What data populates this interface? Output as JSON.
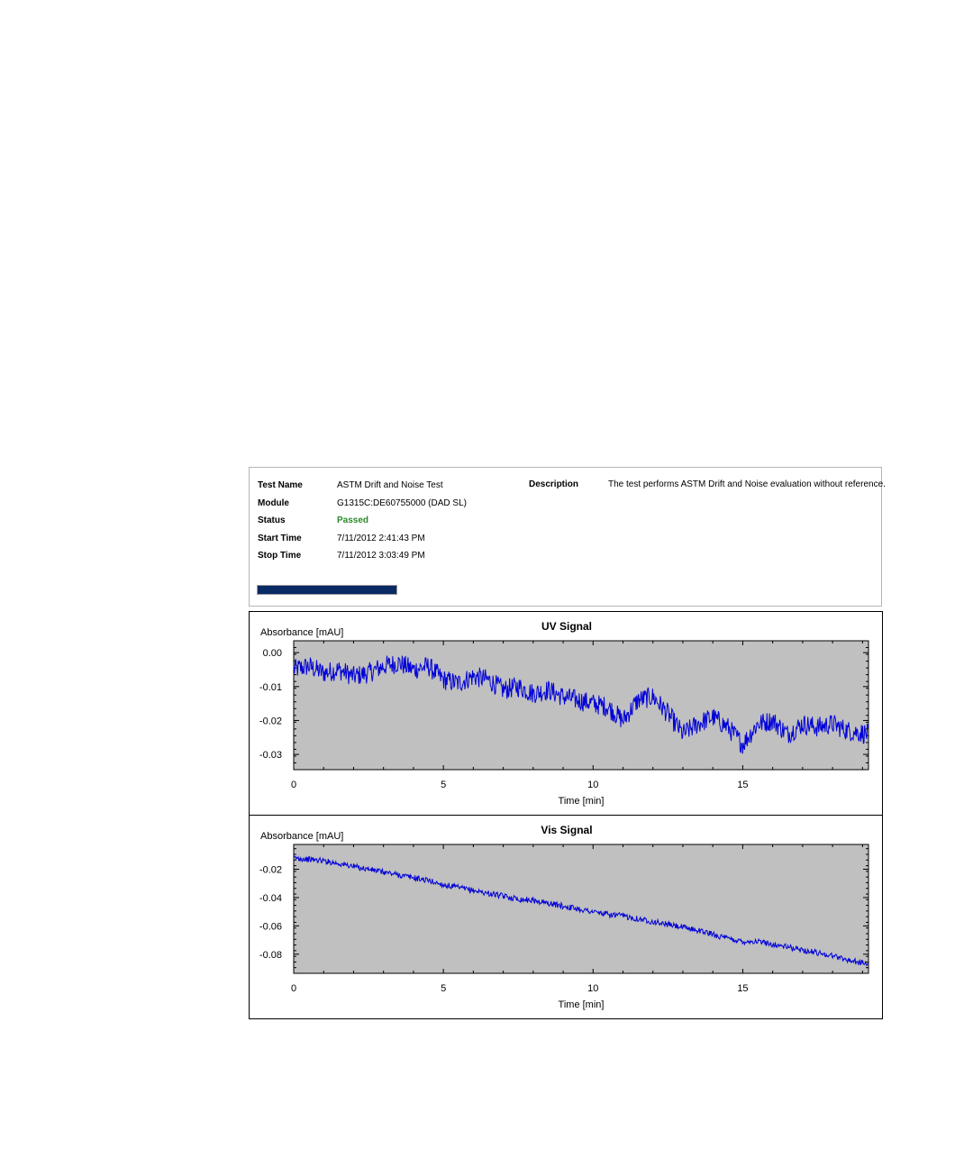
{
  "info": {
    "rows": [
      {
        "label": "Test Name",
        "value": "ASTM Drift and Noise Test"
      },
      {
        "label": "Module",
        "value": "G1315C:DE60755000 (DAD SL)"
      },
      {
        "label": "Status",
        "value": "Passed"
      },
      {
        "label": "Start Time",
        "value": "7/11/2012 2:41:43 PM"
      },
      {
        "label": "Stop Time",
        "value": "7/11/2012 3:03:49 PM"
      }
    ],
    "description_label": "Description",
    "description_value": "The test performs ASTM Drift and Noise evaluation without reference.",
    "progress": 1.0
  },
  "colors": {
    "plot_bg": "#c0c0c0",
    "line": "#0000d8",
    "status_passed": "#2a8a2a",
    "progress_fill": "#0a2a66"
  },
  "chart_data": [
    {
      "type": "line",
      "title": "UV Signal",
      "ylabel": "Absorbance [mAU]",
      "xlabel": "Time [min]",
      "xlim": [
        0,
        19.2
      ],
      "ylim": [
        -0.0345,
        0.0035
      ],
      "xticks": [
        0,
        5,
        10,
        15
      ],
      "yticks": [
        0.0,
        -0.01,
        -0.02,
        -0.03
      ],
      "ytick_labels": [
        "0.00",
        "-0.01",
        "-0.02",
        "-0.03"
      ],
      "grid": false,
      "series": [
        {
          "x": [
            0,
            0.5,
            1,
            1.5,
            2,
            2.5,
            3,
            3.5,
            4,
            4.5,
            5,
            5.5,
            6,
            6.5,
            7,
            7.5,
            8,
            8.5,
            9,
            9.5,
            10,
            10.5,
            11,
            11.5,
            12,
            12.5,
            13,
            13.5,
            14,
            14.5,
            15,
            15.5,
            16,
            16.5,
            17,
            17.5,
            18,
            18.5,
            19.2
          ],
          "y": [
            -0.005,
            -0.004,
            -0.006,
            -0.005,
            -0.007,
            -0.006,
            -0.004,
            -0.003,
            -0.005,
            -0.004,
            -0.008,
            -0.009,
            -0.007,
            -0.008,
            -0.011,
            -0.01,
            -0.012,
            -0.011,
            -0.013,
            -0.014,
            -0.015,
            -0.016,
            -0.02,
            -0.014,
            -0.013,
            -0.018,
            -0.024,
            -0.021,
            -0.019,
            -0.022,
            -0.027,
            -0.021,
            -0.02,
            -0.024,
            -0.021,
            -0.022,
            -0.021,
            -0.023,
            -0.024
          ]
        }
      ]
    },
    {
      "type": "line",
      "title": "Vis Signal",
      "ylabel": "Absorbance [mAU]",
      "xlabel": "Time [min]",
      "xlim": [
        0,
        19.2
      ],
      "ylim": [
        -0.0935,
        -0.0025
      ],
      "xticks": [
        0,
        5,
        10,
        15
      ],
      "yticks": [
        -0.02,
        -0.04,
        -0.06,
        -0.08
      ],
      "ytick_labels": [
        "-0.02",
        "-0.04",
        "-0.06",
        "-0.08"
      ],
      "grid": false,
      "series": [
        {
          "x": [
            0,
            0.5,
            1,
            1.5,
            2,
            2.5,
            3,
            3.5,
            4,
            4.5,
            5,
            5.5,
            6,
            6.5,
            7,
            7.5,
            8,
            8.5,
            9,
            9.5,
            10,
            10.5,
            11,
            11.5,
            12,
            12.5,
            13,
            13.5,
            14,
            14.5,
            15,
            15.5,
            16,
            16.5,
            17,
            17.5,
            18,
            18.5,
            19.2
          ],
          "y": [
            -0.012,
            -0.013,
            -0.014,
            -0.016,
            -0.018,
            -0.02,
            -0.022,
            -0.024,
            -0.026,
            -0.028,
            -0.031,
            -0.033,
            -0.035,
            -0.037,
            -0.039,
            -0.041,
            -0.042,
            -0.044,
            -0.046,
            -0.048,
            -0.05,
            -0.052,
            -0.053,
            -0.055,
            -0.057,
            -0.059,
            -0.061,
            -0.063,
            -0.066,
            -0.069,
            -0.071,
            -0.071,
            -0.073,
            -0.075,
            -0.077,
            -0.079,
            -0.081,
            -0.084,
            -0.087
          ]
        }
      ]
    }
  ]
}
